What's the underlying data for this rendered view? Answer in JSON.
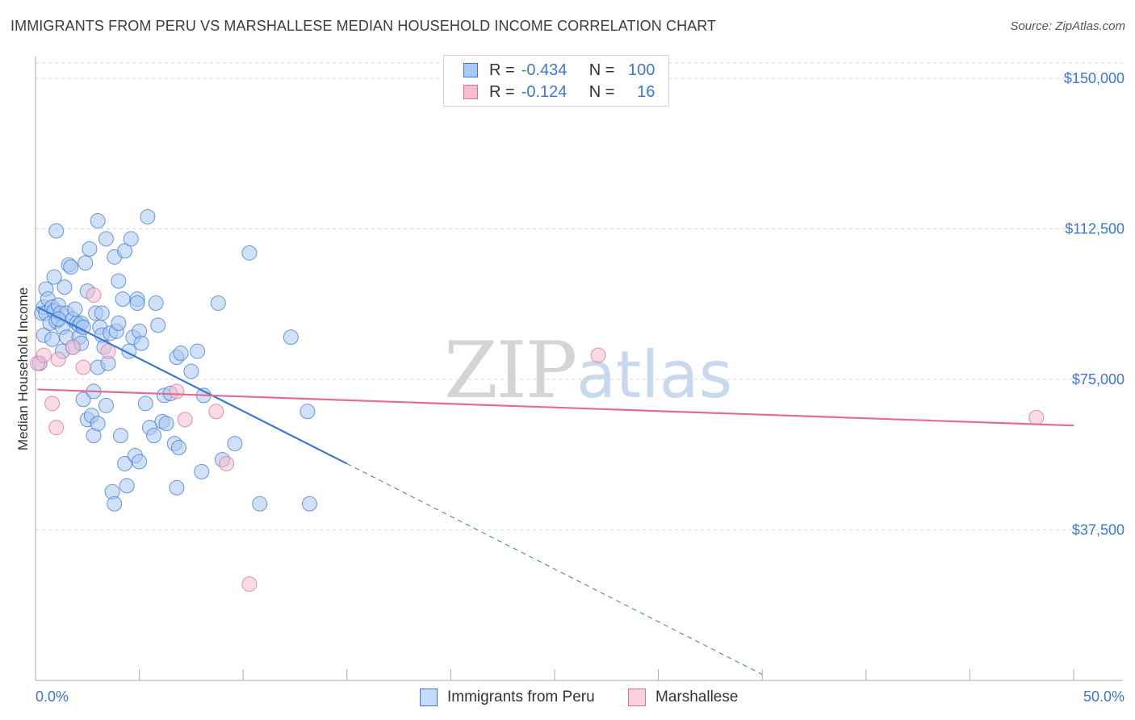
{
  "header": {
    "title": "IMMIGRANTS FROM PERU VS MARSHALLESE MEDIAN HOUSEHOLD INCOME CORRELATION CHART",
    "source": "Source: ZipAtlas.com"
  },
  "colors": {
    "blue": "#3b78d0",
    "blue_fill": "#a9c9f0",
    "pink": "#e06c97",
    "pink_fill": "#f6bdd0",
    "grid": "#d9d9d9"
  },
  "legend": {
    "r_label": "R =",
    "n_label": "N =",
    "rows": [
      {
        "r": "-0.434",
        "n": "100"
      },
      {
        "r": "-0.124",
        "n": "16"
      }
    ]
  },
  "chart_data": {
    "type": "scatter",
    "title": "IMMIGRANTS FROM PERU VS MARSHALLESE MEDIAN HOUSEHOLD INCOME CORRELATION CHART",
    "xlabel": "",
    "ylabel": "Median Household Income",
    "xlim": [
      0,
      50
    ],
    "ylim": [
      0,
      157500
    ],
    "x_tick_labels": [
      "0.0%",
      "50.0%"
    ],
    "y_ticks": [
      37500,
      75000,
      112500,
      150000
    ],
    "y_tick_labels": [
      "$37,500",
      "$75,000",
      "$112,500",
      "$150,000"
    ],
    "watermark": {
      "zip": "ZIP",
      "atlas": "atlas"
    },
    "series": [
      {
        "name": "Immigrants from Peru",
        "color": "blue",
        "r": -0.434,
        "n": 100,
        "trend": {
          "x": [
            0.1,
            15.0
          ],
          "y": [
            93000,
            54000
          ],
          "dash_to": {
            "x": 35.0,
            "y": 1500
          }
        },
        "points": [
          [
            0.2,
            79000
          ],
          [
            0.3,
            91500
          ],
          [
            0.4,
            86000
          ],
          [
            0.4,
            93000
          ],
          [
            0.5,
            91500
          ],
          [
            0.5,
            97500
          ],
          [
            0.6,
            95000
          ],
          [
            0.7,
            89000
          ],
          [
            0.8,
            93000
          ],
          [
            0.8,
            85000
          ],
          [
            0.9,
            100500
          ],
          [
            0.9,
            92000
          ],
          [
            1.0,
            112000
          ],
          [
            1.0,
            89500
          ],
          [
            1.1,
            93500
          ],
          [
            1.2,
            91500
          ],
          [
            1.3,
            82000
          ],
          [
            1.3,
            88000
          ],
          [
            1.4,
            98000
          ],
          [
            1.5,
            91500
          ],
          [
            1.5,
            85500
          ],
          [
            1.6,
            103500
          ],
          [
            1.7,
            103000
          ],
          [
            1.8,
            90000
          ],
          [
            1.8,
            83000
          ],
          [
            1.9,
            92500
          ],
          [
            2.0,
            89000
          ],
          [
            2.1,
            85500
          ],
          [
            2.1,
            88500
          ],
          [
            2.2,
            84000
          ],
          [
            2.2,
            89000
          ],
          [
            2.3,
            70000
          ],
          [
            2.3,
            88000
          ],
          [
            2.4,
            104000
          ],
          [
            2.5,
            97000
          ],
          [
            2.5,
            65000
          ],
          [
            2.6,
            107500
          ],
          [
            2.7,
            66000
          ],
          [
            2.8,
            61000
          ],
          [
            2.8,
            72000
          ],
          [
            2.9,
            91500
          ],
          [
            3.0,
            114500
          ],
          [
            3.0,
            78000
          ],
          [
            3.0,
            64000
          ],
          [
            3.1,
            88000
          ],
          [
            3.2,
            91500
          ],
          [
            3.2,
            86000
          ],
          [
            3.3,
            83000
          ],
          [
            3.4,
            68500
          ],
          [
            3.4,
            110000
          ],
          [
            3.5,
            79000
          ],
          [
            3.6,
            86500
          ],
          [
            3.7,
            47000
          ],
          [
            3.8,
            105500
          ],
          [
            3.8,
            44000
          ],
          [
            3.9,
            87000
          ],
          [
            4.0,
            89000
          ],
          [
            4.0,
            99500
          ],
          [
            4.1,
            61000
          ],
          [
            4.2,
            95000
          ],
          [
            4.3,
            107000
          ],
          [
            4.3,
            54000
          ],
          [
            4.4,
            48500
          ],
          [
            4.5,
            82000
          ],
          [
            4.6,
            110000
          ],
          [
            4.7,
            85500
          ],
          [
            4.8,
            56000
          ],
          [
            4.9,
            95000
          ],
          [
            4.9,
            94000
          ],
          [
            5.0,
            54500
          ],
          [
            5.0,
            87000
          ],
          [
            5.1,
            84000
          ],
          [
            5.3,
            69000
          ],
          [
            5.4,
            115500
          ],
          [
            5.5,
            63000
          ],
          [
            5.7,
            61000
          ],
          [
            5.8,
            94000
          ],
          [
            5.9,
            88500
          ],
          [
            6.1,
            64500
          ],
          [
            6.2,
            71000
          ],
          [
            6.3,
            64000
          ],
          [
            6.5,
            71500
          ],
          [
            6.7,
            59000
          ],
          [
            6.8,
            48000
          ],
          [
            6.8,
            80500
          ],
          [
            6.9,
            58000
          ],
          [
            7.0,
            81500
          ],
          [
            7.5,
            77000
          ],
          [
            7.8,
            82000
          ],
          [
            8.0,
            52000
          ],
          [
            8.1,
            71000
          ],
          [
            8.8,
            94000
          ],
          [
            9.0,
            55000
          ],
          [
            9.6,
            59000
          ],
          [
            10.3,
            106500
          ],
          [
            10.8,
            44000
          ],
          [
            12.3,
            85500
          ],
          [
            13.1,
            67000
          ],
          [
            13.2,
            44000
          ],
          [
            1.1,
            90000
          ]
        ]
      },
      {
        "name": "Marshallese",
        "color": "pink",
        "r": -0.124,
        "n": 16,
        "trend": {
          "x": [
            0.1,
            50.0
          ],
          "y": [
            72500,
            63500
          ]
        },
        "points": [
          [
            0.1,
            79000
          ],
          [
            0.4,
            81000
          ],
          [
            0.8,
            69000
          ],
          [
            1.0,
            63000
          ],
          [
            1.1,
            80000
          ],
          [
            1.8,
            83000
          ],
          [
            2.3,
            78000
          ],
          [
            2.8,
            96000
          ],
          [
            3.5,
            82000
          ],
          [
            6.8,
            72000
          ],
          [
            7.2,
            65000
          ],
          [
            8.7,
            67000
          ],
          [
            9.2,
            54000
          ],
          [
            10.3,
            24000
          ],
          [
            27.1,
            81000
          ],
          [
            48.2,
            65500
          ]
        ]
      }
    ]
  },
  "bottom_legend": {
    "items": [
      {
        "label": "Immigrants from Peru"
      },
      {
        "label": "Marshallese"
      }
    ]
  }
}
